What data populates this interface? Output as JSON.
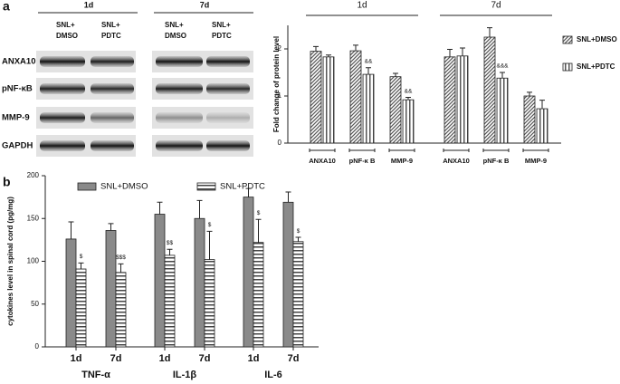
{
  "panel_labels": [
    "a",
    "b"
  ],
  "blot": {
    "times": [
      "1d",
      "7d"
    ],
    "lanes": [
      [
        "SNL+",
        "DMSO"
      ],
      [
        "SNL+",
        "PDTC"
      ],
      [
        "SNL+",
        "DMSO"
      ],
      [
        "SNL+",
        "PDTC"
      ]
    ],
    "rows": [
      "ANXA10",
      "pNF-κB",
      "MMP-9",
      "GAPDH"
    ]
  },
  "chart_data": [
    {
      "type": "bar",
      "y_label": "Fold change of protein level",
      "groups": [
        "1d",
        "7d"
      ],
      "categories": [
        "ANXA10",
        "pNF-κ B",
        "MMP-9",
        "ANXA10",
        "pNF-κ B",
        "MMP-9"
      ],
      "series": [
        {
          "name": "SNL+DMSO",
          "color": "#555555",
          "pattern": "diagonal",
          "values": [
            1.95,
            1.96,
            1.41,
            1.83,
            2.25,
            1.0
          ],
          "errors": [
            0.1,
            0.12,
            0.07,
            0.16,
            0.2,
            0.08
          ]
        },
        {
          "name": "SNL+PDTC",
          "color": "#555555",
          "pattern": "vertical",
          "values": [
            1.83,
            1.46,
            0.92,
            1.85,
            1.38,
            0.73
          ],
          "errors": [
            0.04,
            0.14,
            0.05,
            0.17,
            0.12,
            0.18
          ],
          "annotations": [
            null,
            "&&",
            "&&",
            null,
            "&&&",
            null
          ]
        }
      ],
      "ylim": [
        0,
        2.5
      ],
      "yticks": [
        0,
        1,
        2
      ],
      "legend": "right"
    },
    {
      "type": "bar",
      "y_label": "cytokines level in spinal cord (pg/mg)",
      "groups": [
        "TNF-α",
        "IL-1β",
        "IL-6"
      ],
      "categories": [
        "1d",
        "7d",
        "1d",
        "7d",
        "1d",
        "7d"
      ],
      "series": [
        {
          "name": "SNL+DMSO",
          "color": "#8a8a8a",
          "pattern": "solid",
          "values": [
            126,
            136,
            155,
            150,
            175,
            169
          ],
          "errors": [
            20,
            8,
            14,
            21,
            10,
            12
          ]
        },
        {
          "name": "SNL+PDTC",
          "color": "#444444",
          "pattern": "horizontal",
          "values": [
            91,
            87,
            107,
            102,
            122,
            123
          ],
          "errors": [
            7,
            10,
            7,
            33,
            27,
            5
          ],
          "annotations": [
            "$",
            "$$$",
            "$$",
            "$",
            "$",
            "$"
          ]
        }
      ],
      "ylim": [
        0,
        200
      ],
      "yticks": [
        0,
        50,
        100,
        150,
        200
      ],
      "legend": "top"
    }
  ]
}
